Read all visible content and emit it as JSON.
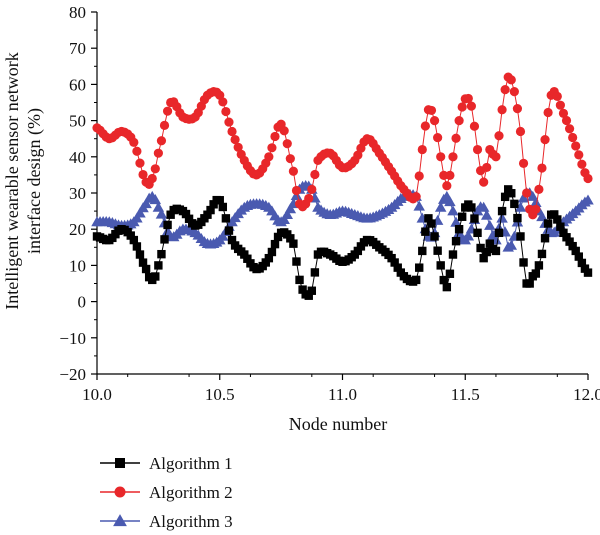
{
  "chart_data": {
    "type": "line",
    "xlabel": "Node number",
    "ylabel_lines": [
      "Intelligent wearable sensor network",
      "interface design (%)"
    ],
    "xlim": [
      10.0,
      12.0
    ],
    "ylim": [
      -20,
      80
    ],
    "x_ticks": [
      10.0,
      10.5,
      11.0,
      11.5,
      12.0
    ],
    "x_tick_labels": [
      "10.0",
      "10.5",
      "11.0",
      "11.5",
      "12.0"
    ],
    "y_ticks": [
      -20,
      -10,
      0,
      10,
      20,
      30,
      40,
      50,
      60,
      70,
      80
    ],
    "y_tick_labels": [
      "−20",
      "−10",
      "0",
      "10",
      "20",
      "30",
      "40",
      "50",
      "60",
      "70",
      "80"
    ],
    "grid": false,
    "legend_position": "bottom-left, below plot",
    "x": [
      10.0,
      10.05,
      10.1,
      10.15,
      10.2,
      10.225,
      10.25,
      10.3,
      10.35,
      10.4,
      10.45,
      10.5,
      10.55,
      10.6,
      10.65,
      10.7,
      10.75,
      10.8,
      10.825,
      10.85,
      10.875,
      10.9,
      10.95,
      11.0,
      11.05,
      11.1,
      11.15,
      11.2,
      11.25,
      11.3,
      11.325,
      11.35,
      11.375,
      11.4,
      11.425,
      11.45,
      11.475,
      11.5,
      11.525,
      11.55,
      11.575,
      11.6,
      11.625,
      11.65,
      11.675,
      11.7,
      11.725,
      11.75,
      11.775,
      11.8,
      11.85,
      11.9,
      11.95,
      12.0
    ],
    "series": [
      {
        "name": "Algorithm 1",
        "color": "#000000",
        "marker": "square",
        "values": [
          18,
          17,
          20,
          17,
          9,
          6,
          10,
          24,
          25,
          21,
          24,
          28,
          17,
          13,
          9,
          12,
          19,
          16,
          6,
          2,
          3,
          13,
          13,
          11,
          13,
          17,
          15,
          12,
          7,
          6,
          14,
          23,
          18,
          10,
          4,
          13,
          20,
          26,
          26,
          19,
          12,
          16,
          14,
          25,
          31,
          27,
          18,
          5,
          7,
          10,
          24,
          19,
          14,
          8
        ]
      },
      {
        "name": "Algorithm 2",
        "color": "#e8272a",
        "marker": "circle",
        "values": [
          48,
          45,
          47,
          44,
          33,
          34,
          41,
          55,
          51,
          51,
          57,
          57,
          47,
          39,
          35,
          40,
          49,
          36,
          27,
          27,
          31,
          39,
          41,
          37,
          39,
          45,
          41,
          36,
          31,
          29,
          42,
          53,
          50,
          40,
          32,
          40,
          50,
          56,
          54,
          42,
          33,
          42,
          40,
          53,
          62,
          58,
          47,
          30,
          24,
          31,
          57,
          52,
          43,
          34
        ]
      },
      {
        "name": "Algorithm 3",
        "color": "#4a5ab0",
        "marker": "triangle",
        "values": [
          22,
          22,
          21,
          22,
          27,
          29,
          26,
          18,
          20,
          19,
          16,
          17,
          22,
          26,
          27,
          26,
          22,
          27,
          31,
          32,
          31,
          26,
          24,
          25,
          24,
          23,
          24,
          26,
          29,
          29,
          23,
          18,
          19,
          26,
          29,
          25,
          19,
          17,
          20,
          25,
          26,
          21,
          17,
          23,
          15,
          18,
          26,
          30,
          29,
          25,
          19,
          22,
          25,
          28
        ]
      }
    ]
  }
}
